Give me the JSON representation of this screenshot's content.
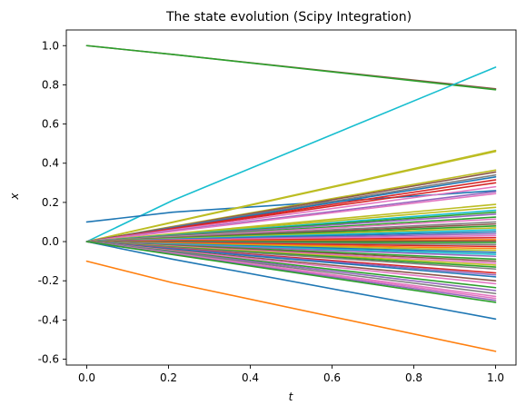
{
  "chart_data": {
    "type": "line",
    "title": "The state evolution (Scipy Integration)",
    "xlabel": "t",
    "ylabel": "x",
    "xlim": [
      -0.05,
      1.05
    ],
    "ylim": [
      -0.63,
      1.08
    ],
    "x_ticks": [
      0.0,
      0.2,
      0.4,
      0.6,
      0.8,
      1.0
    ],
    "x_tick_labels": [
      "0.0",
      "0.2",
      "0.4",
      "0.6",
      "0.8",
      "1.0"
    ],
    "y_ticks": [
      -0.6,
      -0.4,
      -0.2,
      0.0,
      0.2,
      0.4,
      0.6,
      0.8,
      1.0
    ],
    "y_tick_labels": [
      "-0.6",
      "-0.4",
      "-0.2",
      "0.0",
      "0.2",
      "0.4",
      "0.6",
      "0.8",
      "1.0"
    ],
    "grid": false,
    "legend": "none",
    "x": [
      0.0,
      0.21,
      1.0
    ],
    "colors": [
      "#1f77b4",
      "#ff7f0e",
      "#2ca02c",
      "#d62728",
      "#9467bd",
      "#8c564b",
      "#e377c2",
      "#7f7f7f",
      "#bcbd22",
      "#17becf"
    ],
    "series": [
      {
        "values": [
          1.0,
          0.955,
          0.78
        ],
        "color": "#8c564b"
      },
      {
        "values": [
          1.0,
          0.955,
          0.775
        ],
        "color": "#2ca02c"
      },
      {
        "values": [
          0.0,
          0.21,
          0.89
        ],
        "color": "#17becf"
      },
      {
        "values": [
          0.1,
          0.15,
          0.26
        ],
        "color": "#1f77b4"
      },
      {
        "values": [
          -0.1,
          -0.21,
          -0.56
        ],
        "color": "#ff7f0e"
      },
      {
        "values": [
          0.0,
          -0.09,
          -0.395
        ],
        "color": "#1f77b4"
      },
      {
        "values": [
          0.0,
          0.1,
          0.465
        ],
        "color": "#bcbd22"
      },
      {
        "values": [
          0.0,
          0.098,
          0.46
        ],
        "color": "#bcbd22"
      },
      {
        "values": [
          0.0,
          0.077,
          0.365
        ],
        "color": "#bcbd22"
      },
      {
        "values": [
          0.0,
          0.075,
          0.355
        ],
        "color": "#8c564b"
      },
      {
        "values": [
          0.0,
          0.073,
          0.34
        ],
        "color": "#7f7f7f"
      },
      {
        "values": [
          0.0,
          0.07,
          0.33
        ],
        "color": "#1f77b4"
      },
      {
        "values": [
          0.0,
          0.067,
          0.315
        ],
        "color": "#d62728"
      },
      {
        "values": [
          0.0,
          0.064,
          0.3
        ],
        "color": "#d62728"
      },
      {
        "values": [
          0.0,
          0.06,
          0.28
        ],
        "color": "#e377c2"
      },
      {
        "values": [
          0.0,
          0.055,
          0.255
        ],
        "color": "#9467bd"
      },
      {
        "values": [
          0.0,
          0.052,
          0.245
        ],
        "color": "#e377c2"
      },
      {
        "values": [
          0.0,
          0.04,
          0.19
        ],
        "color": "#bcbd22"
      },
      {
        "values": [
          0.0,
          0.037,
          0.175
        ],
        "color": "#bcbd22"
      },
      {
        "values": [
          0.0,
          0.034,
          0.16
        ],
        "color": "#17becf"
      },
      {
        "values": [
          0.0,
          0.032,
          0.15
        ],
        "color": "#2ca02c"
      },
      {
        "values": [
          0.0,
          0.03,
          0.14
        ],
        "color": "#9467bd"
      },
      {
        "values": [
          0.0,
          0.027,
          0.125
        ],
        "color": "#2ca02c"
      },
      {
        "values": [
          0.0,
          0.025,
          0.115
        ],
        "color": "#e377c2"
      },
      {
        "values": [
          0.0,
          0.022,
          0.1
        ],
        "color": "#7f7f7f"
      },
      {
        "values": [
          0.0,
          0.019,
          0.09
        ],
        "color": "#8c564b"
      },
      {
        "values": [
          0.0,
          0.017,
          0.08
        ],
        "color": "#2ca02c"
      },
      {
        "values": [
          0.0,
          0.015,
          0.07
        ],
        "color": "#bcbd22"
      },
      {
        "values": [
          0.0,
          0.013,
          0.06
        ],
        "color": "#17becf"
      },
      {
        "values": [
          0.0,
          0.011,
          0.05
        ],
        "color": "#1f77b4"
      },
      {
        "values": [
          0.0,
          0.009,
          0.04
        ],
        "color": "#9467bd"
      },
      {
        "values": [
          0.0,
          0.007,
          0.03
        ],
        "color": "#e377c2"
      },
      {
        "values": [
          0.0,
          0.005,
          0.02
        ],
        "color": "#d62728"
      },
      {
        "values": [
          0.0,
          0.003,
          0.01
        ],
        "color": "#ff7f0e"
      },
      {
        "values": [
          0.0,
          0.001,
          0.003
        ],
        "color": "#8c564b"
      },
      {
        "values": [
          0.0,
          -0.001,
          -0.005
        ],
        "color": "#2ca02c"
      },
      {
        "values": [
          0.0,
          -0.003,
          -0.015
        ],
        "color": "#7f7f7f"
      },
      {
        "values": [
          0.0,
          -0.005,
          -0.025
        ],
        "color": "#d62728"
      },
      {
        "values": [
          0.0,
          -0.008,
          -0.035
        ],
        "color": "#ff7f0e"
      },
      {
        "values": [
          0.0,
          -0.01,
          -0.045
        ],
        "color": "#bcbd22"
      },
      {
        "values": [
          0.0,
          -0.012,
          -0.055
        ],
        "color": "#1f77b4"
      },
      {
        "values": [
          0.0,
          -0.014,
          -0.065
        ],
        "color": "#17becf"
      },
      {
        "values": [
          0.0,
          -0.016,
          -0.075
        ],
        "color": "#9467bd"
      },
      {
        "values": [
          0.0,
          -0.019,
          -0.09
        ],
        "color": "#2ca02c"
      },
      {
        "values": [
          0.0,
          -0.021,
          -0.1
        ],
        "color": "#8c564b"
      },
      {
        "values": [
          0.0,
          -0.024,
          -0.11
        ],
        "color": "#e377c2"
      },
      {
        "values": [
          0.0,
          -0.026,
          -0.12
        ],
        "color": "#bcbd22"
      },
      {
        "values": [
          0.0,
          -0.028,
          -0.13
        ],
        "color": "#2ca02c"
      },
      {
        "values": [
          0.0,
          -0.03,
          -0.14
        ],
        "color": "#7f7f7f"
      },
      {
        "values": [
          0.0,
          -0.034,
          -0.16
        ],
        "color": "#d62728"
      },
      {
        "values": [
          0.0,
          -0.036,
          -0.17
        ],
        "color": "#9467bd"
      },
      {
        "values": [
          0.0,
          -0.038,
          -0.18
        ],
        "color": "#1f77b4"
      },
      {
        "values": [
          0.0,
          -0.043,
          -0.2
        ],
        "color": "#8c564b"
      },
      {
        "values": [
          0.0,
          -0.046,
          -0.215
        ],
        "color": "#e377c2"
      },
      {
        "values": [
          0.0,
          -0.05,
          -0.235
        ],
        "color": "#2ca02c"
      },
      {
        "values": [
          0.0,
          -0.053,
          -0.25
        ],
        "color": "#9467bd"
      },
      {
        "values": [
          0.0,
          -0.056,
          -0.265
        ],
        "color": "#7f7f7f"
      },
      {
        "values": [
          0.0,
          -0.06,
          -0.28
        ],
        "color": "#e377c2"
      },
      {
        "values": [
          0.0,
          -0.062,
          -0.29
        ],
        "color": "#e377c2"
      },
      {
        "values": [
          0.0,
          -0.064,
          -0.3
        ],
        "color": "#9467bd"
      },
      {
        "values": [
          0.0,
          -0.066,
          -0.31
        ],
        "color": "#2ca02c"
      }
    ]
  }
}
